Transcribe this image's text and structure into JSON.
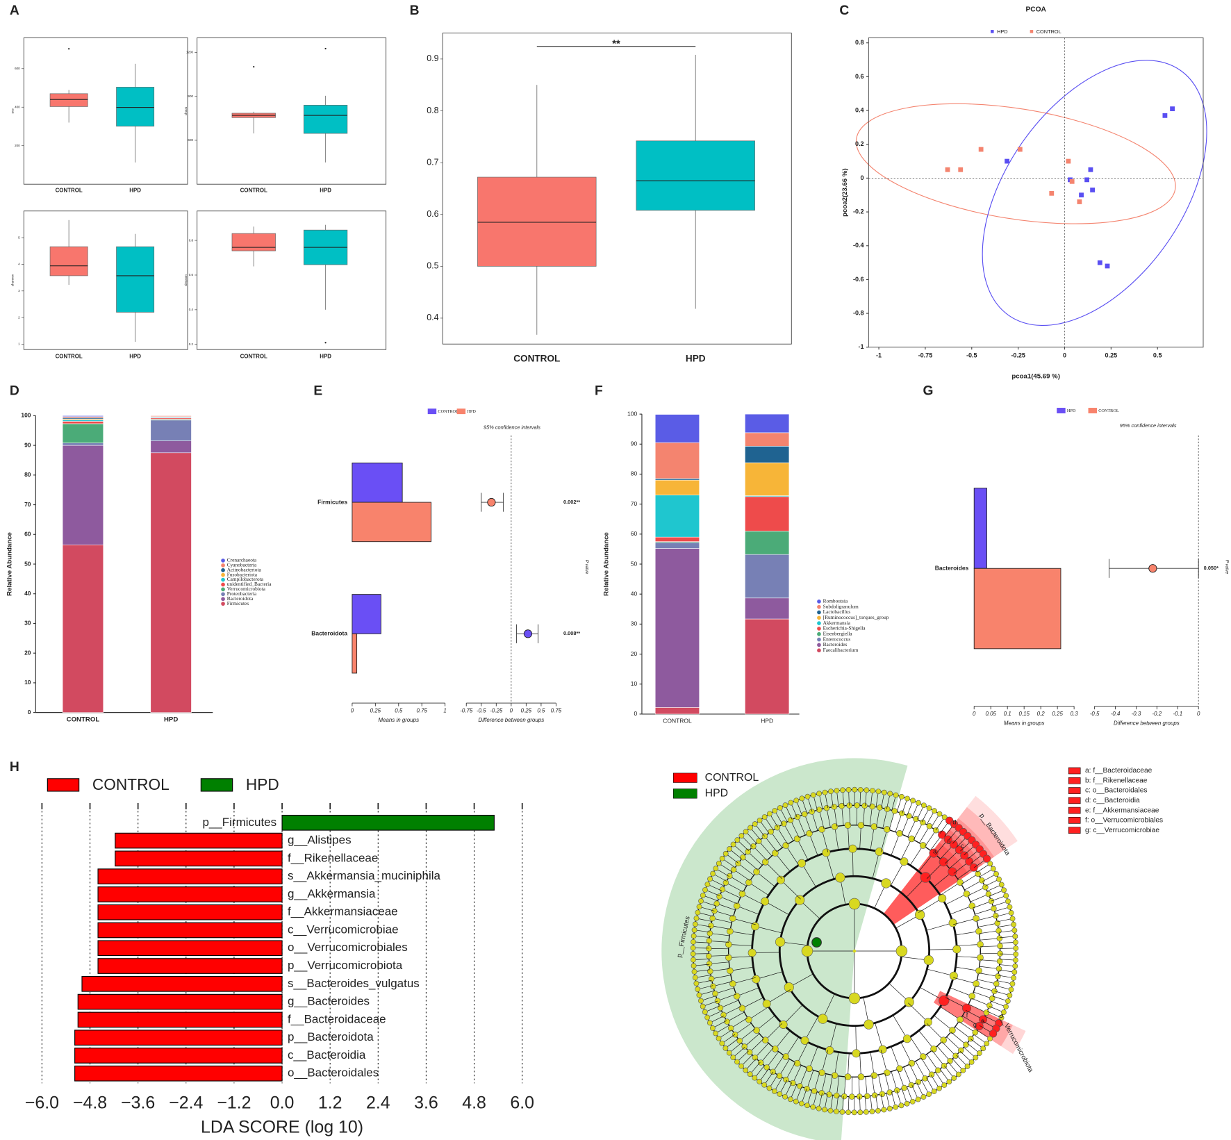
{
  "chart_data": [
    {
      "type": "box",
      "panel": "A",
      "ylabel": "ace",
      "categories": [
        "CONTROL",
        "HPD"
      ],
      "colors": [
        "#f8766d",
        "#00bfc4"
      ],
      "boxes": [
        {
          "low": 320,
          "q1": 403,
          "median": 440,
          "q3": 470,
          "high": 489,
          "outliers": [
            703
          ]
        },
        {
          "low": 113,
          "q1": 301,
          "median": 399,
          "q3": 504,
          "high": 625
        }
      ],
      "ylim": [
        0,
        760
      ],
      "yticks": [
        200,
        400,
        600
      ]
    },
    {
      "type": "box",
      "ylabel": "chao1",
      "categories": [
        "CONTROL",
        "HPD"
      ],
      "colors": [
        "#f8766d",
        "#00bfc4"
      ],
      "boxes": [
        {
          "low": 647,
          "q1": 755,
          "median": 770,
          "q3": 785,
          "high": 795,
          "outliers": [
            1102
          ]
        },
        {
          "low": 449,
          "q1": 647,
          "median": 770,
          "q3": 840,
          "high": 904,
          "outliers": [
            1226
          ]
        }
      ],
      "ylim": [
        300,
        1300
      ],
      "yticks": [
        600,
        900,
        1200
      ]
    },
    {
      "type": "box",
      "ylabel": "shannon",
      "categories": [
        "CONTROL",
        "HPD"
      ],
      "colors": [
        "#f8766d",
        "#00bfc4"
      ],
      "boxes": [
        {
          "low": 3.23,
          "q1": 3.57,
          "median": 3.94,
          "q3": 4.66,
          "high": 5.66
        },
        {
          "low": 1.09,
          "q1": 2.2,
          "median": 3.57,
          "q3": 4.66,
          "high": 5.14
        }
      ],
      "ylim": [
        0.8,
        6.0
      ],
      "yticks": [
        1,
        2,
        3,
        4,
        5
      ]
    },
    {
      "type": "box",
      "ylabel": "simpson",
      "categories": [
        "CONTROL",
        "HPD"
      ],
      "colors": [
        "#f8766d",
        "#00bfc4"
      ],
      "boxes": [
        {
          "low": 0.65,
          "q1": 0.74,
          "median": 0.76,
          "q3": 0.84,
          "high": 0.88
        },
        {
          "low": 0.4,
          "q1": 0.66,
          "median": 0.76,
          "q3": 0.86,
          "high": 0.89,
          "outliers": [
            0.21
          ]
        }
      ],
      "ylim": [
        0.17,
        0.97
      ],
      "yticks": [
        0.2,
        0.4,
        0.6,
        0.8
      ]
    },
    {
      "type": "box",
      "panel": "B",
      "annotation": "**",
      "categories": [
        "CONTROL",
        "HPD"
      ],
      "colors": [
        "#f8766d",
        "#00bfc4"
      ],
      "boxes": [
        {
          "low": 0.368,
          "q1": 0.5,
          "median": 0.585,
          "q3": 0.672,
          "high": 0.85
        },
        {
          "low": 0.418,
          "q1": 0.608,
          "median": 0.665,
          "q3": 0.742,
          "high": 0.908
        }
      ],
      "ylim": [
        0.35,
        0.95
      ],
      "yticks": [
        0.4,
        0.5,
        0.6,
        0.7,
        0.8,
        0.9
      ]
    },
    {
      "type": "scatter",
      "panel": "C",
      "title": "PCOA",
      "xlabel": "pcoa1(45.69 %)",
      "ylabel": "pcoa2(23.66 %)",
      "xlim": [
        -1.055,
        0.746
      ],
      "ylim": [
        -1.0,
        0.83
      ],
      "xticks": [
        -1,
        -0.75,
        -0.5,
        -0.25,
        0,
        0.25,
        0.5
      ],
      "yticks": [
        0.8,
        0.6,
        0.4,
        0.2,
        0,
        -0.2,
        -0.4,
        -0.6,
        -0.8,
        -1
      ],
      "series": [
        {
          "name": "HPD",
          "color": "#5a4ff2",
          "x": [
            0.58,
            0.54,
            -0.31,
            0.14,
            0.03,
            0.12,
            0.15,
            0.09,
            0.19,
            0.23
          ],
          "values": [
            0.41,
            0.37,
            0.1,
            0.05,
            -0.01,
            -0.01,
            -0.07,
            -0.1,
            -0.5,
            -0.52
          ]
        },
        {
          "name": "CONTROL",
          "color": "#f4846f",
          "x": [
            -0.63,
            -0.56,
            -0.45,
            -0.24,
            0.02,
            0.04,
            -0.07,
            0.08
          ],
          "values": [
            0.05,
            0.05,
            0.17,
            0.17,
            0.1,
            -0.02,
            -0.09,
            -0.14
          ]
        }
      ]
    },
    {
      "type": "stacked_bar",
      "panel": "D",
      "ylabel": "Relative Abundance",
      "categories": [
        "CONTROL",
        "HPD"
      ],
      "ylim": [
        0,
        100
      ],
      "yticks": [
        0,
        10,
        20,
        30,
        40,
        50,
        60,
        70,
        80,
        90,
        100
      ],
      "legend": "right",
      "series": [
        {
          "name": "Crenarchaeota",
          "color": "#5a5ce6",
          "values": [
            0.3,
            0.1
          ]
        },
        {
          "name": "Cyanobacteria",
          "color": "#f4846f",
          "values": [
            0.4,
            0.3
          ]
        },
        {
          "name": "Actinobacteriota",
          "color": "#1f6391",
          "values": [
            0.4,
            0.2
          ]
        },
        {
          "name": "Fusobacteriota",
          "color": "#f7b538",
          "values": [
            0.3,
            0.1
          ]
        },
        {
          "name": "Campilobacterota",
          "color": "#1fc6cf",
          "values": [
            0.5,
            0.2
          ]
        },
        {
          "name": "unidentified_Bacteria",
          "color": "#ee4b4b",
          "values": [
            0.8,
            0.4
          ]
        },
        {
          "name": "Verrucomicrobiota",
          "color": "#4bab78",
          "values": [
            6.5,
            0.3
          ]
        },
        {
          "name": "Proteobacteria",
          "color": "#7780b5",
          "values": [
            0.8,
            7
          ]
        },
        {
          "name": "Bacteroidota",
          "color": "#8e5a9e",
          "values": [
            33.5,
            4
          ]
        },
        {
          "name": "Firmicutes",
          "color": "#d24a60",
          "values": [
            56.5,
            87.5
          ]
        }
      ]
    },
    {
      "type": "stamp",
      "panel": "E",
      "features": [
        "Firmicutes",
        "Bacteroidota"
      ],
      "series": [
        {
          "name": "CONTROL",
          "color": "#6a4ff5",
          "values": [
            0.54,
            0.31
          ]
        },
        {
          "name": "HPD",
          "color": "#f8836c",
          "values": [
            0.85,
            0.05
          ]
        }
      ],
      "diff": [
        -0.33,
        0.28
      ],
      "ci_low": [
        -0.5,
        0.09
      ],
      "ci_high": [
        -0.13,
        0.45
      ],
      "p_labels": [
        "0.002**",
        "0.008**"
      ],
      "ci_label": "95% confidence intervals",
      "p_axis_label": "P value",
      "xlabel": "Means in groups",
      "diff_label": "Difference between groups",
      "xlim": [
        0,
        1
      ],
      "xticks": [
        0,
        0.25,
        0.5,
        0.75,
        1
      ],
      "diff_xlim": [
        -0.75,
        0.75
      ],
      "diff_xticks": [
        -0.75,
        -0.5,
        -0.25,
        0,
        0.25,
        0.5,
        0.75
      ]
    },
    {
      "type": "stacked_bar",
      "panel": "F",
      "ylabel": "Relative Abundance",
      "categories": [
        "CONTROL",
        "HPD"
      ],
      "ylim": [
        0,
        100
      ],
      "yticks": [
        0,
        10,
        20,
        30,
        40,
        50,
        60,
        70,
        80,
        90,
        100
      ],
      "legend": "right",
      "series": [
        {
          "name": "Romboutsia",
          "color": "#5a5ce6",
          "values": [
            9.4,
            6.2
          ]
        },
        {
          "name": "Subdoligranulum",
          "color": "#f4846f",
          "values": [
            12,
            4.5
          ]
        },
        {
          "name": "Lactobacillus",
          "color": "#1f6391",
          "values": [
            0.5,
            5.5
          ]
        },
        {
          "name": "[Ruminococcus]_torques_group",
          "color": "#f7b538",
          "values": [
            5,
            11
          ]
        },
        {
          "name": "Akkermansia",
          "color": "#1fc6cf",
          "values": [
            14,
            0.3
          ]
        },
        {
          "name": "Escherichia-Shigella",
          "color": "#ee4b4b",
          "values": [
            1.5,
            11.5
          ]
        },
        {
          "name": "Eisenbergiella",
          "color": "#4bab78",
          "values": [
            0.3,
            7.8
          ]
        },
        {
          "name": "Enterococcus",
          "color": "#7780b5",
          "values": [
            2,
            14.5
          ]
        },
        {
          "name": "Bacteroides",
          "color": "#8e5a9e",
          "values": [
            53,
            7
          ]
        },
        {
          "name": "Faecalibacterium",
          "color": "#d24a60",
          "values": [
            2.2,
            31.7
          ]
        }
      ]
    },
    {
      "type": "stamp",
      "panel": "G",
      "features": [
        "Bacteroides"
      ],
      "series": [
        {
          "name": "HPD",
          "color": "#6a4ff5",
          "values": [
            0.038
          ]
        },
        {
          "name": "CONTROL",
          "color": "#f8836c",
          "values": [
            0.26
          ]
        }
      ],
      "diff": [
        -0.22
      ],
      "ci_low": [
        -0.43
      ],
      "ci_high": [
        0.0
      ],
      "p_labels": [
        "0.050*"
      ],
      "ci_label": "95% confidence intervals",
      "p_axis_label": "P value",
      "xlabel": "Means in groups",
      "diff_label": "Difference between groups",
      "xlim": [
        0,
        0.3
      ],
      "xticks": [
        0,
        0.05,
        0.1,
        0.15,
        0.2,
        0.25,
        0.3
      ],
      "diff_xlim": [
        -0.5,
        0
      ],
      "diff_xticks": [
        -0.5,
        -0.4,
        -0.3,
        -0.2,
        -0.1,
        0
      ]
    },
    {
      "type": "lda",
      "panel": "H",
      "xlabel": "LDA SCORE (log 10)",
      "series": [
        {
          "name": "CONTROL",
          "color": "#ff0000"
        },
        {
          "name": "HPD",
          "color": "#008000"
        }
      ],
      "categories": [
        "p__Firmicutes",
        "g__Alistipes",
        "f__Rikenellaceae",
        "s__Akkermansia_muciniphila",
        "g__Akkermansia",
        "f__Akkermansiaceae",
        "c__Verrucomicrobiae",
        "o__Verrucomicrobiales",
        "p__Verrucomicrobiota",
        "s__Bacteroides_vulgatus",
        "g__Bacteroides",
        "f__Bacteroidaceae",
        "p__Bacteroidota",
        "c__Bacteroidia",
        "o__Bacteroidales"
      ],
      "values": [
        5.3,
        -4.17,
        -4.17,
        -4.6,
        -4.6,
        -4.6,
        -4.6,
        -4.6,
        -4.6,
        -5.0,
        -5.1,
        -5.1,
        -5.18,
        -5.18,
        -5.18
      ],
      "xlim": [
        -6,
        6
      ],
      "xticks": [
        {
          "value": -6,
          "label": "−6.0"
        },
        {
          "value": -4.8,
          "label": "−4.8"
        },
        {
          "value": -3.6,
          "label": "−3.6"
        },
        {
          "value": -2.4,
          "label": "−2.4"
        },
        {
          "value": -1.2,
          "label": "−1.2"
        },
        {
          "value": 0,
          "label": "0.0"
        },
        1.2,
        2.4,
        3.6,
        4.8,
        {
          "value": 6,
          "label": "6.0"
        }
      ]
    },
    {
      "type": "cladogram",
      "series": [
        {
          "name": "CONTROL",
          "color": "#ff0000"
        },
        {
          "name": "HPD",
          "color": "#008000"
        }
      ],
      "key": [
        "a: f__Bacteroidaceae",
        "b: f__Rikenellaceae",
        "c: o__Bacteroidales",
        "d: c__Bacteroidia",
        "e: f__Akkermansiaceae",
        "f: o__Verrucomicrobiales",
        "g: c__Verrucomicrobiae"
      ],
      "wedge_letters": [
        "a",
        "b",
        "c",
        "d",
        "e",
        "f",
        "g"
      ],
      "clade_labels": [
        "p__Firmicutes",
        "p__Bacteroidota",
        "p__Verrucomicrobiota"
      ]
    }
  ]
}
